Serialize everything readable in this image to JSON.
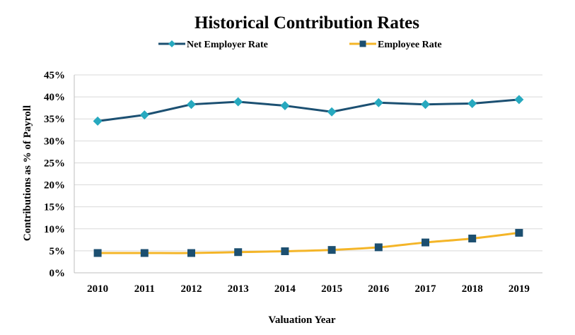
{
  "chart_data": {
    "type": "line",
    "title": "Historical Contribution Rates",
    "xlabel": "Valuation Year",
    "ylabel": "Contributions as % of Payroll",
    "categories": [
      "2010",
      "2011",
      "2012",
      "2013",
      "2014",
      "2015",
      "2016",
      "2017",
      "2018",
      "2019"
    ],
    "ylim": [
      0,
      45
    ],
    "yticks": [
      0,
      5,
      10,
      15,
      20,
      25,
      30,
      35,
      40,
      45
    ],
    "ytick_labels": [
      "0%",
      "5%",
      "10%",
      "15%",
      "20%",
      "25%",
      "30%",
      "35%",
      "40%",
      "45%"
    ],
    "grid": true,
    "legend_position": "top",
    "series": [
      {
        "name": "Net Employer Rate",
        "values": [
          34.5,
          35.9,
          38.3,
          38.9,
          38.0,
          36.6,
          38.7,
          38.3,
          38.5,
          39.4
        ],
        "line_color": "#1c5072",
        "marker": "diamond",
        "marker_color": "#27a9bf"
      },
      {
        "name": "Employee Rate",
        "values": [
          4.5,
          4.5,
          4.5,
          4.7,
          4.9,
          5.2,
          5.8,
          6.9,
          7.8,
          9.1
        ],
        "line_color": "#f4b528",
        "marker": "square",
        "marker_color": "#1c4f70"
      }
    ]
  }
}
